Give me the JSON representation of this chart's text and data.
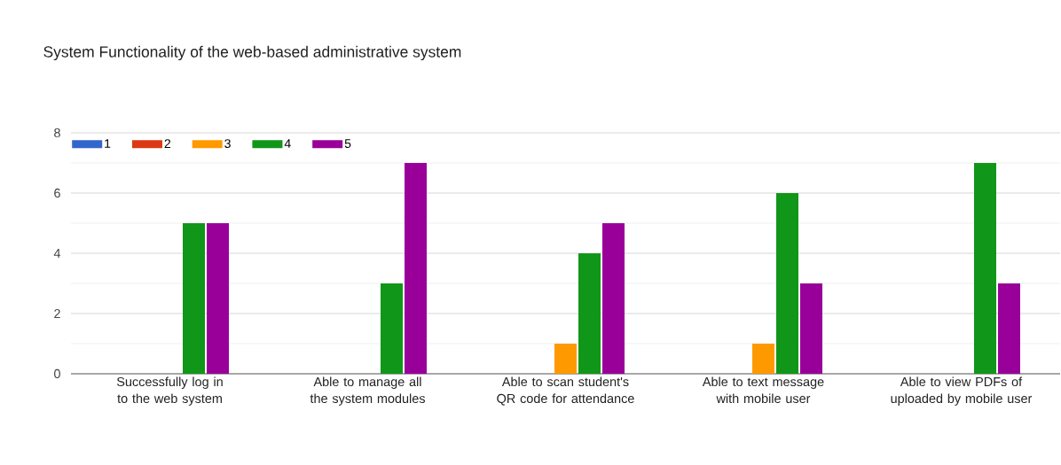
{
  "chart_data": {
    "type": "bar",
    "title": "System Functionality of the web-based administrative system",
    "categories": [
      "Successfully log in to the web system",
      "Able to manage all the system modules",
      "Able to scan student's QR code for attendance",
      "Able to text message with mobile user",
      "Able to view PDFs of uploaded by mobile user"
    ],
    "series": [
      {
        "name": "1",
        "color": "#3366cc",
        "values": [
          0,
          0,
          0,
          0,
          0
        ]
      },
      {
        "name": "2",
        "color": "#dc3912",
        "values": [
          0,
          0,
          0,
          0,
          0
        ]
      },
      {
        "name": "3",
        "color": "#ff9900",
        "values": [
          0,
          0,
          1,
          1,
          0
        ]
      },
      {
        "name": "4",
        "color": "#109618",
        "values": [
          5,
          3,
          4,
          6,
          7
        ]
      },
      {
        "name": "5",
        "color": "#990099",
        "values": [
          5,
          7,
          5,
          3,
          3
        ]
      }
    ],
    "ylim": [
      0,
      8
    ],
    "yticks": [
      0,
      2,
      4,
      6,
      8
    ],
    "grid": "y",
    "legend": "top left"
  }
}
